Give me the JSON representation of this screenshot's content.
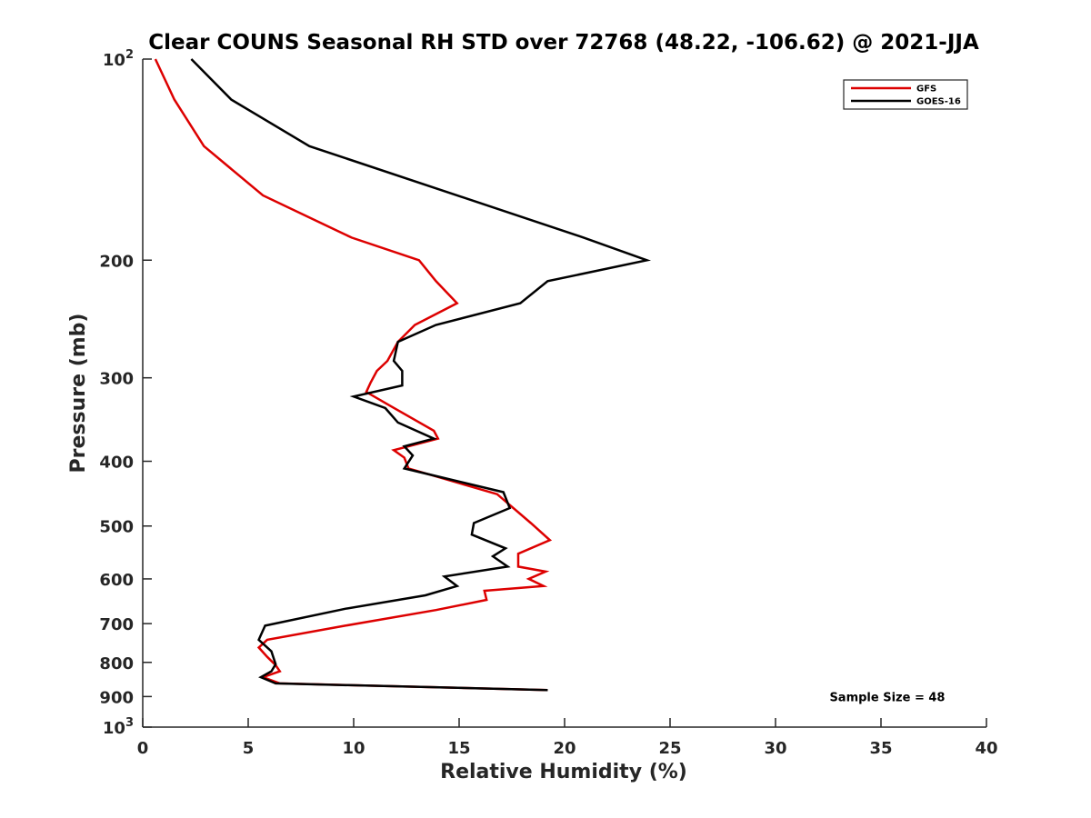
{
  "chart_data": {
    "type": "line",
    "title": "Clear COUNS Seasonal RH STD over 72768 (48.22, -106.62) @ 2021-JJA",
    "xlabel": "Relative Humidity (%)",
    "ylabel": "Pressure (mb)",
    "xlim": [
      0,
      40
    ],
    "ylim": [
      100,
      1000
    ],
    "yscale": "log",
    "yreversed": true,
    "grid": false,
    "legend_location": "top-right",
    "x_ticks": [
      {
        "value": 0,
        "label": "0"
      },
      {
        "value": 5,
        "label": "5"
      },
      {
        "value": 10,
        "label": "10"
      },
      {
        "value": 15,
        "label": "15"
      },
      {
        "value": 20,
        "label": "20"
      },
      {
        "value": 25,
        "label": "25"
      },
      {
        "value": 30,
        "label": "30"
      },
      {
        "value": 35,
        "label": "35"
      },
      {
        "value": 40,
        "label": "40"
      }
    ],
    "y_ticks": [
      {
        "value": 100,
        "label": "10",
        "sup": "2"
      },
      {
        "value": 200,
        "label": "200"
      },
      {
        "value": 300,
        "label": "300"
      },
      {
        "value": 400,
        "label": "400"
      },
      {
        "value": 500,
        "label": "500"
      },
      {
        "value": 600,
        "label": "600"
      },
      {
        "value": 700,
        "label": "700"
      },
      {
        "value": 800,
        "label": "800"
      },
      {
        "value": 900,
        "label": "900"
      },
      {
        "value": 1000,
        "label": "10",
        "sup": "3"
      }
    ],
    "series": [
      {
        "name": "GFS",
        "color": "#dd0000",
        "points": [
          [
            0.6,
            100
          ],
          [
            1.5,
            115
          ],
          [
            2.9,
            135
          ],
          [
            5.7,
            160
          ],
          [
            9.9,
            185
          ],
          [
            13.1,
            200
          ],
          [
            13.9,
            215
          ],
          [
            14.9,
            232
          ],
          [
            12.9,
            250
          ],
          [
            12.1,
            265
          ],
          [
            11.6,
            283
          ],
          [
            11.1,
            293
          ],
          [
            10.8,
            305
          ],
          [
            10.6,
            315
          ],
          [
            11.7,
            330
          ],
          [
            13.8,
            360
          ],
          [
            14.0,
            370
          ],
          [
            11.9,
            385
          ],
          [
            12.4,
            395
          ],
          [
            12.6,
            410
          ],
          [
            16.8,
            448
          ],
          [
            18.4,
            495
          ],
          [
            19.3,
            525
          ],
          [
            17.8,
            550
          ],
          [
            17.8,
            575
          ],
          [
            19.1,
            585
          ],
          [
            18.3,
            600
          ],
          [
            19.0,
            615
          ],
          [
            16.2,
            625
          ],
          [
            16.3,
            645
          ],
          [
            13.9,
            668
          ],
          [
            9.6,
            705
          ],
          [
            5.9,
            740
          ],
          [
            5.5,
            760
          ],
          [
            5.9,
            785
          ],
          [
            6.3,
            808
          ],
          [
            6.5,
            825
          ],
          [
            5.7,
            842
          ],
          [
            6.5,
            860
          ],
          [
            19.2,
            880
          ]
        ]
      },
      {
        "name": "GOES-16",
        "color": "#000000",
        "points": [
          [
            2.3,
            100
          ],
          [
            4.2,
            115
          ],
          [
            7.9,
            135
          ],
          [
            20.9,
            185
          ],
          [
            23.9,
            200
          ],
          [
            19.2,
            215
          ],
          [
            17.9,
            232
          ],
          [
            13.9,
            250
          ],
          [
            12.1,
            265
          ],
          [
            11.9,
            283
          ],
          [
            12.3,
            293
          ],
          [
            12.3,
            308
          ],
          [
            10.0,
            320
          ],
          [
            11.5,
            333
          ],
          [
            12.1,
            350
          ],
          [
            13.8,
            370
          ],
          [
            12.4,
            380
          ],
          [
            12.8,
            392
          ],
          [
            12.4,
            410
          ],
          [
            17.1,
            445
          ],
          [
            17.4,
            470
          ],
          [
            15.7,
            495
          ],
          [
            15.6,
            515
          ],
          [
            17.2,
            540
          ],
          [
            16.6,
            555
          ],
          [
            17.3,
            575
          ],
          [
            14.3,
            595
          ],
          [
            14.9,
            615
          ],
          [
            13.4,
            635
          ],
          [
            9.6,
            665
          ],
          [
            5.8,
            705
          ],
          [
            5.5,
            740
          ],
          [
            6.1,
            770
          ],
          [
            6.3,
            805
          ],
          [
            6.1,
            825
          ],
          [
            5.6,
            842
          ],
          [
            6.3,
            860
          ],
          [
            19.2,
            880
          ]
        ]
      }
    ],
    "annotations": [
      {
        "text": "Sample Size = 48",
        "x": 35.3,
        "y": 915
      }
    ]
  }
}
